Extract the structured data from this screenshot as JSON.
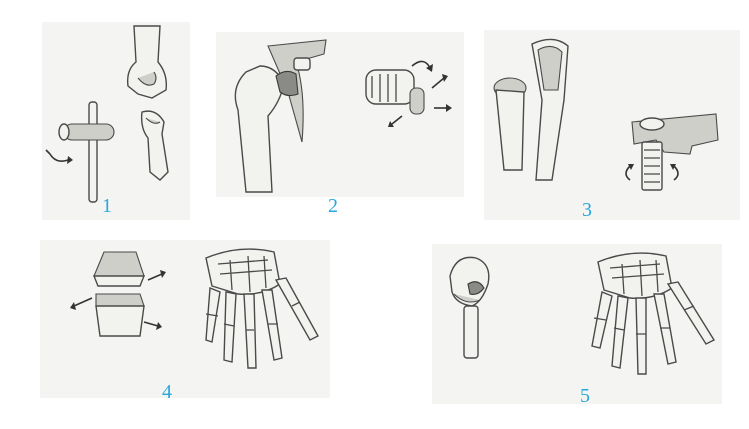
{
  "figure": {
    "colors": {
      "label": "#29a6dc",
      "panel": "#f4f4f2",
      "ink": "#4a4a4a"
    },
    "panels": [
      {
        "id": "1",
        "label": "1",
        "illustrations": [
          "hinge-joint-model-icon",
          "elbow-joint-icon"
        ]
      },
      {
        "id": "2",
        "label": "2",
        "illustrations": [
          "shoulder-joint-icon",
          "ball-and-socket-model-icon"
        ]
      },
      {
        "id": "3",
        "label": "3",
        "illustrations": [
          "radioulnar-joint-icon",
          "pivot-joint-model-icon"
        ]
      },
      {
        "id": "4",
        "label": "4",
        "illustrations": [
          "plane-joint-model-icon",
          "hand-skeleton-icon"
        ]
      },
      {
        "id": "5",
        "label": "5",
        "illustrations": [
          "saddle-joint-model-icon",
          "hand-skeleton-icon"
        ]
      }
    ]
  }
}
